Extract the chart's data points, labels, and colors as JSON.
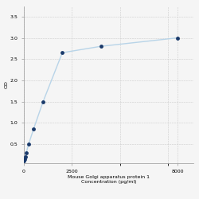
{
  "x": [
    15.625,
    31.25,
    62.5,
    125,
    250,
    500,
    1000,
    2000,
    4000,
    8000
  ],
  "y": [
    0.1,
    0.15,
    0.2,
    0.3,
    0.5,
    0.85,
    1.5,
    2.65,
    2.8,
    3.0
  ],
  "xlabel_line1": "Mouse Golgi apparatus protein 1",
  "xlabel_line2": "Concentration (pg/ml)",
  "ylabel": "OD",
  "x_tick_positions": [
    0,
    2500,
    8000
  ],
  "x_tick_labels": [
    "0",
    "2500",
    "8000"
  ],
  "y_ticks": [
    0.5,
    1.0,
    1.5,
    2.0,
    2.5,
    3.0,
    3.5
  ],
  "ylim": [
    0.05,
    3.75
  ],
  "xlim": [
    0,
    8800
  ],
  "line_color": "#b8d4e8",
  "marker_color": "#1a3a6b",
  "marker_size": 3.5,
  "line_width": 1.0,
  "grid_color": "#cccccc",
  "bg_color": "#f5f5f5",
  "tick_fontsize": 4.5,
  "label_fontsize": 4.5
}
